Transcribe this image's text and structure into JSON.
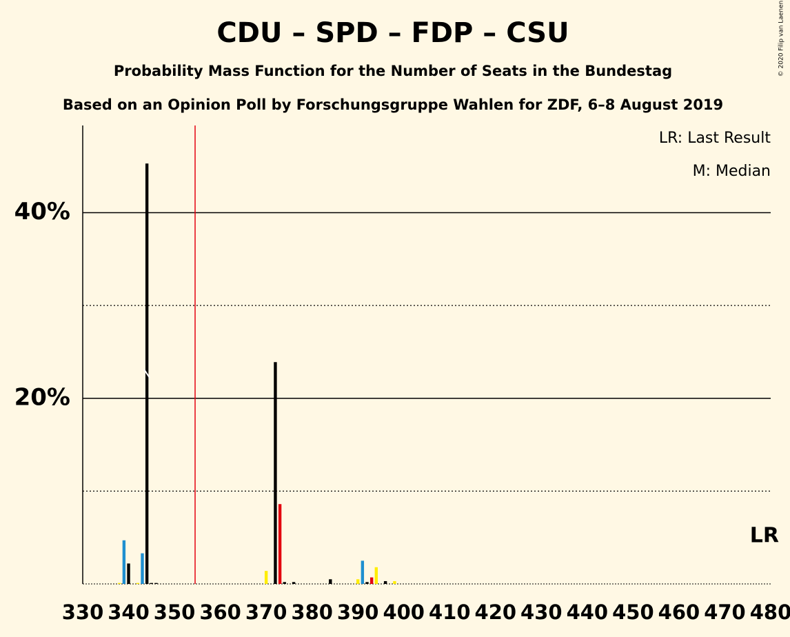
{
  "chart_data": {
    "type": "bar",
    "title": "CDU – SPD – FDP – CSU",
    "subtitle": "Probability Mass Function for the Number of Seats in the Bundestag",
    "source": "Based on an Opinion Poll by Forschungsgruppe Wahlen for ZDF, 6–8 August 2019",
    "copyright": "© 2020 Filip van Laenen",
    "legend": [
      "LR: Last Result",
      "M: Median"
    ],
    "last_result_label": "LR",
    "last_result": 480,
    "median": 344,
    "majority": 354.5,
    "x": [
      338,
      339,
      340,
      342,
      343,
      344,
      345,
      346,
      370,
      372,
      373,
      374,
      376,
      384,
      390,
      391,
      392,
      393,
      394,
      396,
      398
    ],
    "values": [
      0.1,
      4.7,
      2.2,
      0.1,
      3.3,
      45.3,
      0.1,
      0.1,
      1.4,
      23.9,
      8.6,
      0.2,
      0.2,
      0.5,
      0.5,
      2.5,
      0.2,
      0.7,
      1.8,
      0.3,
      0.3
    ],
    "colors": [
      "#ffed00",
      "#1e8fd0",
      "#000000",
      "#ffed00",
      "#1e8fd0",
      "#000000",
      "#000000",
      "#000000",
      "#ffed00",
      "#000000",
      "#e3000f",
      "#000000",
      "#000000",
      "#000000",
      "#ffed00",
      "#1e8fd0",
      "#000000",
      "#e3000f",
      "#ffed00",
      "#000000",
      "#ffed00"
    ],
    "xlim": [
      330,
      480
    ],
    "xticks": [
      330,
      340,
      350,
      360,
      370,
      380,
      390,
      400,
      410,
      420,
      430,
      440,
      450,
      460,
      470,
      480
    ],
    "ylim": [
      0,
      49.4
    ],
    "yticks": [
      {
        "value": 20,
        "label": "20%"
      },
      {
        "value": 40,
        "label": "40%"
      }
    ],
    "minor_yticks": [
      10,
      30
    ]
  }
}
